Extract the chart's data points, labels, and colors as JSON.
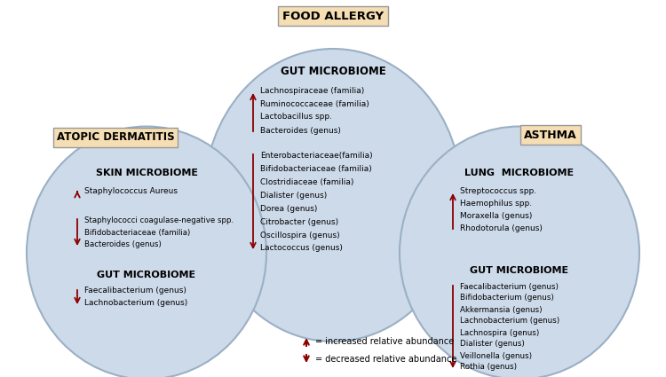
{
  "background_color": "#ffffff",
  "circle_fill_color": "#cddaea",
  "circle_edge_color": "#9ab0c4",
  "up_color": "#8b0000",
  "down_color": "#8b0000",
  "box_fill": "#f5deb3",
  "box_edge": "#999999",
  "food_allergy_label": "FOOD ALLERGY",
  "atopic_label": "ATOPIC DERMATITIS",
  "asthma_label": "ASTHMA",
  "legend_up": "= increased relative abundance",
  "legend_down": "= decreased relative abundance"
}
